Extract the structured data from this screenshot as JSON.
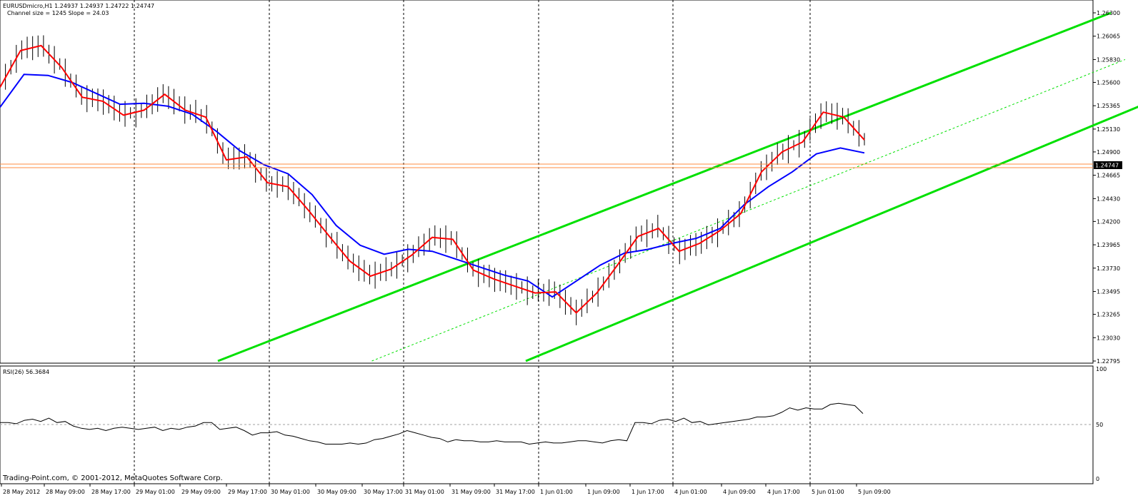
{
  "header": {
    "symbol_line": "EURUSDmicro,H1  1.24937 1.24937 1.24722 1.24747",
    "channel_line": "Channel size = 1245 Slope = 24.03"
  },
  "rsi": {
    "label": "RSI(26) 56.3684",
    "ticks": [
      "100",
      "50",
      "0"
    ]
  },
  "footer": {
    "copyright": "Trading-Point.com, © 2001-2012, MetaQuotes Software Corp."
  },
  "chart_data": {
    "type": "line",
    "title": "EURUSDmicro,H1",
    "y_ticks": [
      "1.26300",
      "1.26065",
      "1.25830",
      "1.25600",
      "1.25365",
      "1.25130",
      "1.24900",
      "1.24665",
      "1.24430",
      "1.24200",
      "1.23965",
      "1.23730",
      "1.23495",
      "1.23265",
      "1.23030",
      "1.22795"
    ],
    "ylim": [
      1.22795,
      1.263
    ],
    "current_price": "1.24747",
    "x_ticks": [
      "28 May 2012",
      "28 May 09:00",
      "28 May 17:00",
      "29 May 01:00",
      "29 May 09:00",
      "29 May 17:00",
      "30 May 01:00",
      "30 May 09:00",
      "30 May 17:00",
      "31 May 01:00",
      "31 May 09:00",
      "31 May 17:00",
      "1 Jun 01:00",
      "1 Jun 09:00",
      "1 Jun 17:00",
      "4 Jun 01:00",
      "4 Jun 09:00",
      "4 Jun 17:00",
      "5 Jun 01:00",
      "5 Jun 09:00"
    ],
    "series": [
      {
        "name": "fast_ma",
        "color": "#ff0000",
        "values": [
          1.2555,
          1.2592,
          1.2597,
          1.2575,
          1.2545,
          1.2541,
          1.2527,
          1.2532,
          1.2548,
          1.2532,
          1.2525,
          1.2482,
          1.2485,
          1.2459,
          1.2455,
          1.2431,
          1.2405,
          1.238,
          1.2365,
          1.2372,
          1.2386,
          1.2404,
          1.2402,
          1.2371,
          1.2362,
          1.2355,
          1.2348,
          1.2349,
          1.2328,
          1.2348,
          1.2376,
          1.2405,
          1.2413,
          1.239,
          1.2398,
          1.2411,
          1.2428,
          1.247,
          1.249,
          1.25,
          1.253,
          1.2525,
          1.2502
        ]
      },
      {
        "name": "slow_ma",
        "color": "#0000ff",
        "values": [
          1.2535,
          1.2568,
          1.2567,
          1.256,
          1.2549,
          1.2538,
          1.2539,
          1.2536,
          1.2528,
          1.2511,
          1.2491,
          1.2477,
          1.2468,
          1.2447,
          1.2416,
          1.2396,
          1.2387,
          1.2392,
          1.239,
          1.2382,
          1.2374,
          1.2366,
          1.236,
          1.2344,
          1.236,
          1.2376,
          1.2388,
          1.2392,
          1.2398,
          1.2403,
          1.2413,
          1.2437,
          1.2455,
          1.247,
          1.2488,
          1.2494,
          1.2489
        ]
      }
    ],
    "channel": {
      "color": "#00e000",
      "upper": {
        "from": [
          0.305,
          1.22795
        ],
        "to": [
          1.555,
          1.263
        ]
      },
      "lower": {
        "from": [
          0.736,
          1.22795
        ],
        "to": [
          1.595,
          1.2536
        ]
      },
      "mid_dashed": true
    },
    "rsi_series": [
      52,
      52,
      51,
      54,
      55,
      53,
      56,
      52,
      53,
      49,
      47,
      46,
      47,
      45,
      47,
      48,
      47,
      46,
      47,
      48,
      45,
      47,
      46,
      48,
      49,
      52,
      52,
      46,
      47,
      48,
      45,
      41,
      43,
      43,
      44,
      41,
      40,
      38,
      36,
      35,
      33,
      33,
      33,
      34,
      33,
      34,
      37,
      38,
      40,
      42,
      45,
      43,
      41,
      39,
      38,
      35,
      37,
      36,
      36,
      35,
      35,
      36,
      35,
      35,
      35,
      33,
      34,
      35,
      34,
      34,
      35,
      36,
      36,
      35,
      34,
      36,
      37,
      36,
      52,
      52,
      51,
      54,
      55,
      53,
      56,
      52,
      53,
      50,
      51,
      52,
      53,
      54,
      55,
      57,
      57,
      58,
      61,
      65,
      63,
      65,
      64,
      64,
      68,
      69,
      68,
      67,
      60
    ]
  }
}
